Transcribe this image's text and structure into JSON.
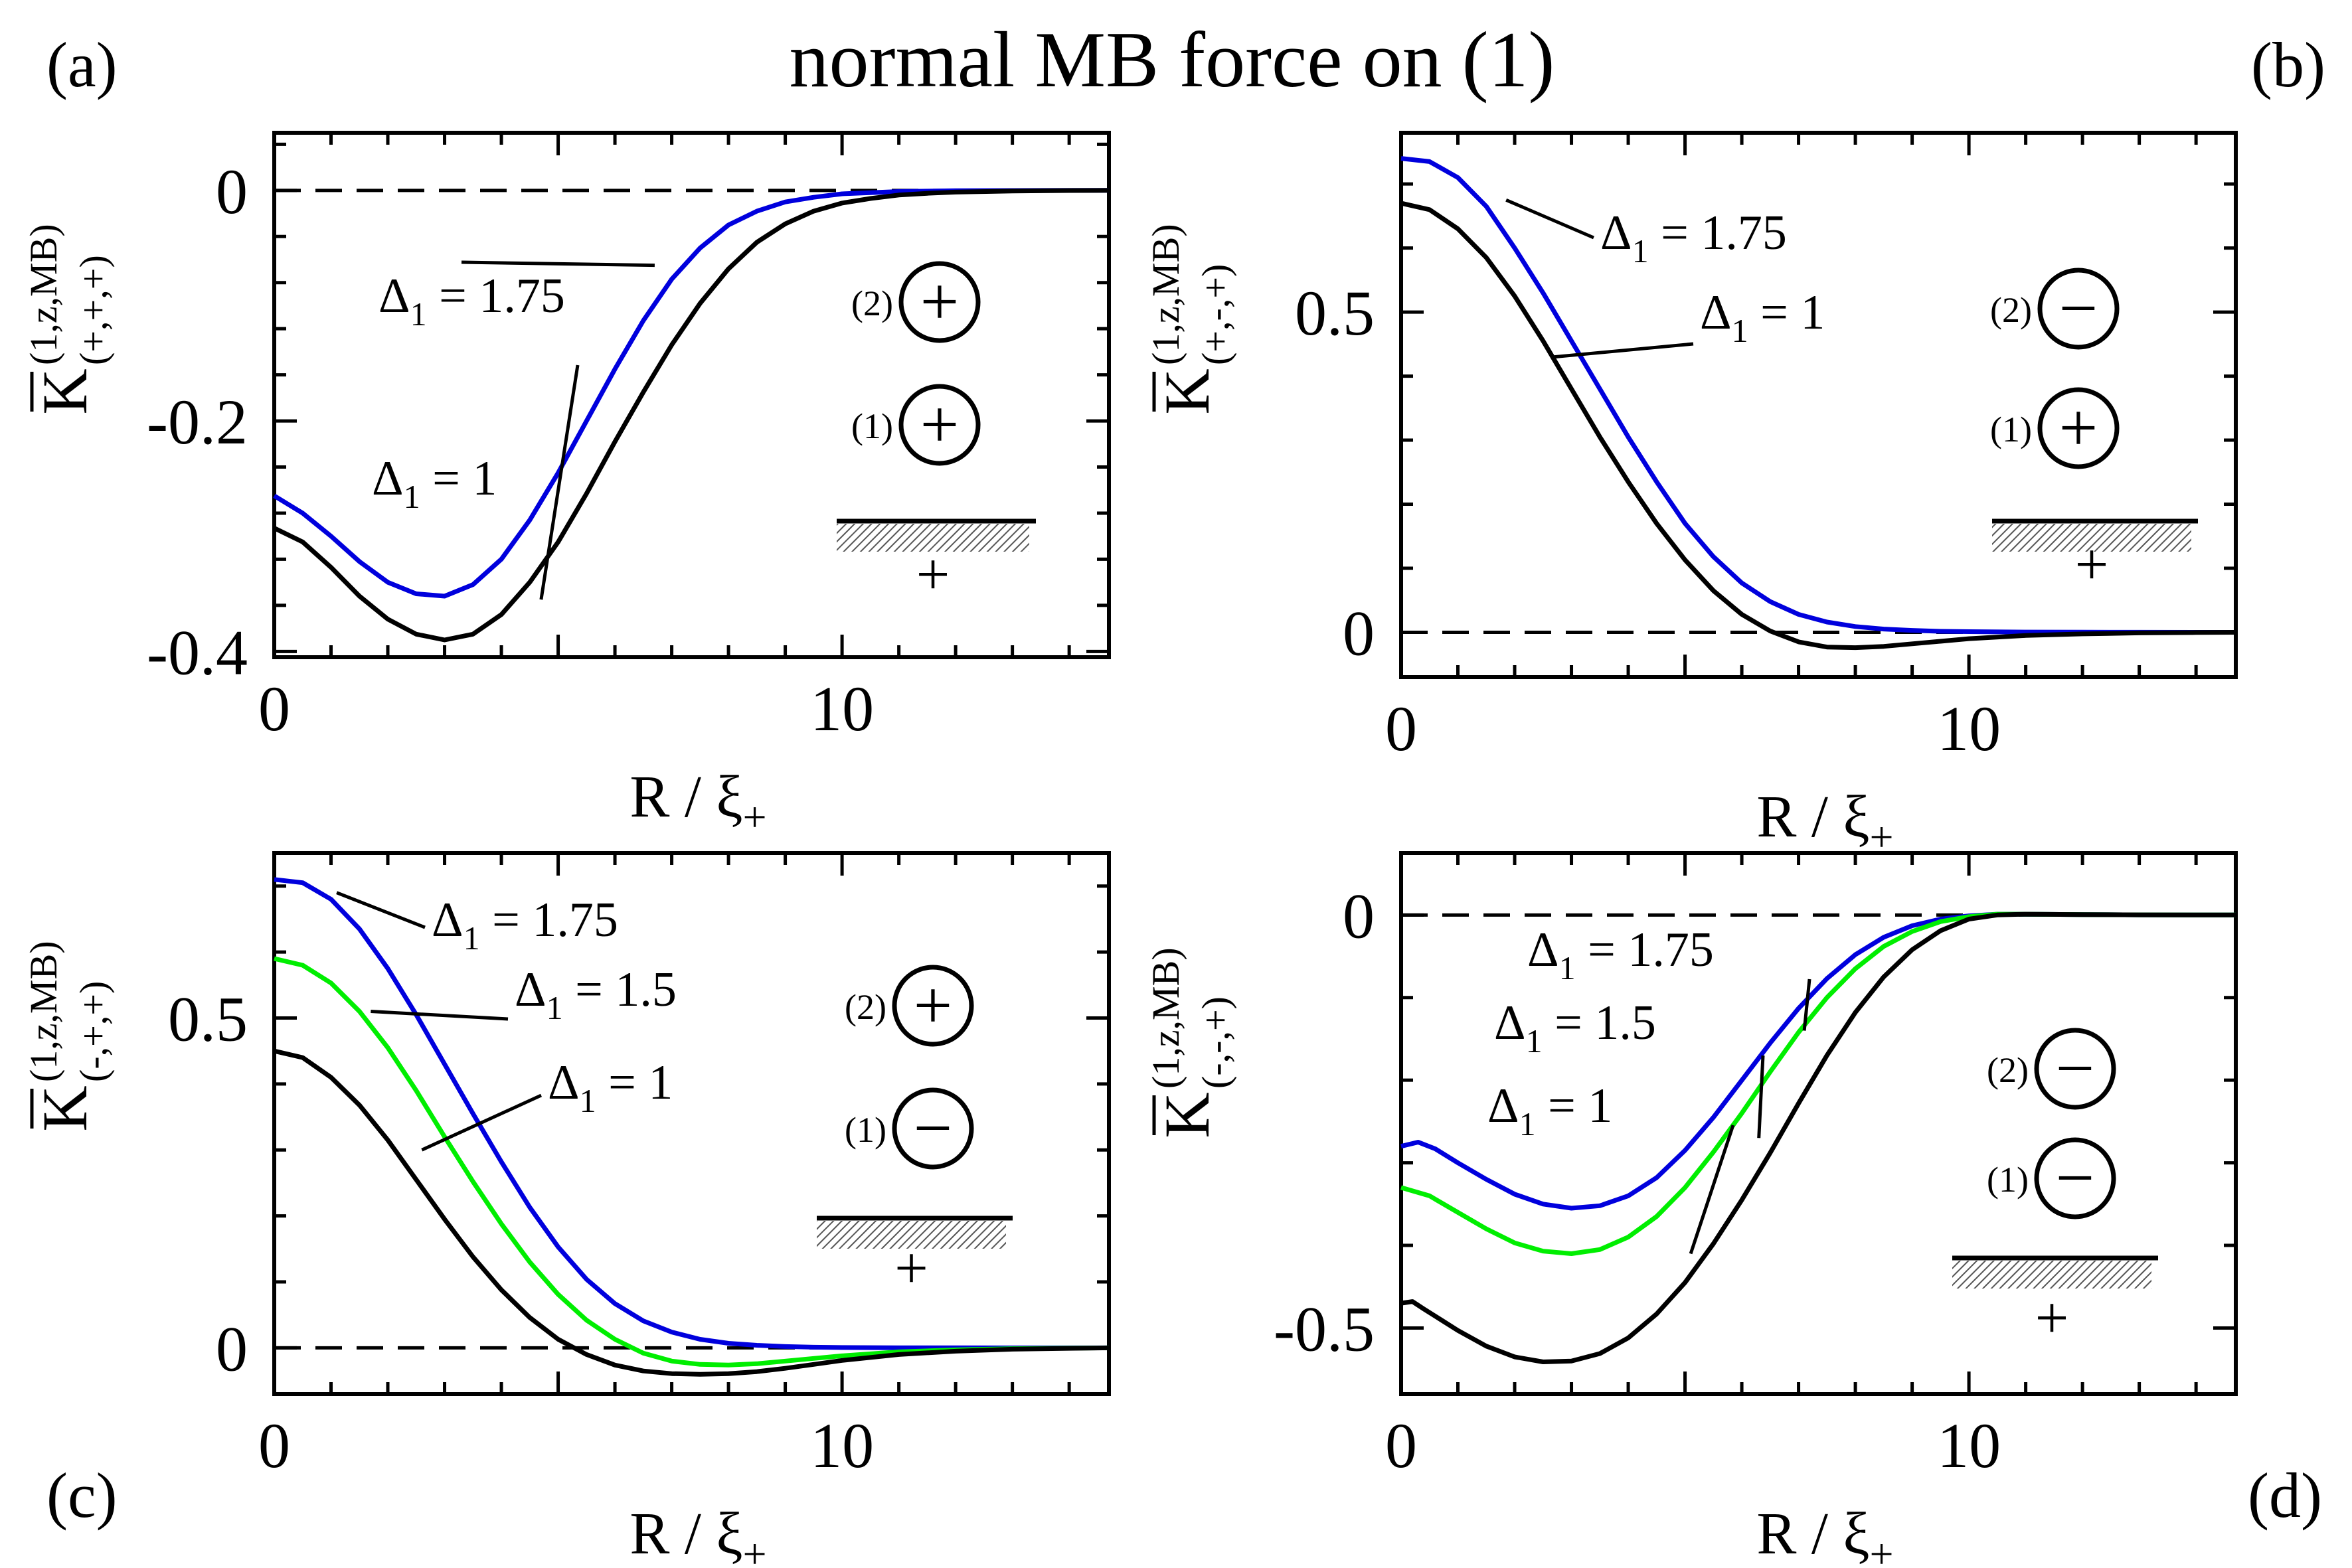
{
  "figure": {
    "title": "normal MB force on (1)"
  },
  "chart_data": [
    {
      "type": "line",
      "panel_label": "(a)",
      "xlabel": "R / ξ",
      "xlabel_sub": "+",
      "ylabel_main": "K",
      "ylabel_sup": "(1,z,MB)",
      "ylabel_sub": "(+,+,+)",
      "xlim": [
        0,
        14.7
      ],
      "ylim": [
        -0.405,
        0.05
      ],
      "xticks": [
        0,
        10
      ],
      "xtick_labels": [
        "0",
        "10"
      ],
      "yticks": [
        0,
        -0.2,
        -0.4
      ],
      "ytick_labels": [
        "0",
        "-0.2",
        "-0.4"
      ],
      "series": [
        {
          "name": "Δ1 = 1.75",
          "color": "#0000dd",
          "x": [
            0,
            0.5,
            1,
            1.5,
            2,
            2.5,
            3,
            3.5,
            4,
            4.5,
            5,
            5.5,
            6,
            6.5,
            7,
            7.5,
            8,
            8.5,
            9,
            9.5,
            10,
            10.5,
            11,
            11.5,
            12,
            13,
            14,
            14.7
          ],
          "y": [
            -0.265,
            -0.28,
            -0.3,
            -0.322,
            -0.34,
            -0.35,
            -0.352,
            -0.342,
            -0.32,
            -0.286,
            -0.245,
            -0.2,
            -0.155,
            -0.113,
            -0.077,
            -0.05,
            -0.03,
            -0.018,
            -0.01,
            -0.006,
            -0.003,
            -0.002,
            -0.001,
            -0.0006,
            -0.0003,
            -0.0001,
            0,
            0
          ]
        },
        {
          "name": "Δ1 = 1",
          "color": "#000000",
          "x": [
            0,
            0.5,
            1,
            1.5,
            2,
            2.5,
            3,
            3.5,
            4,
            4.5,
            5,
            5.5,
            6,
            6.5,
            7,
            7.5,
            8,
            8.5,
            9,
            9.5,
            10,
            10.5,
            11,
            11.5,
            12,
            13,
            14,
            14.7
          ],
          "y": [
            -0.293,
            -0.305,
            -0.327,
            -0.352,
            -0.372,
            -0.385,
            -0.39,
            -0.385,
            -0.368,
            -0.34,
            -0.305,
            -0.263,
            -0.218,
            -0.175,
            -0.134,
            -0.098,
            -0.068,
            -0.045,
            -0.029,
            -0.018,
            -0.011,
            -0.007,
            -0.004,
            -0.0025,
            -0.0015,
            -0.0005,
            -0.0001,
            0
          ]
        }
      ],
      "annotations": [
        {
          "text": "Δ",
          "sub": "1",
          "rest": " = 1.75"
        },
        {
          "text": "Δ",
          "sub": "1",
          "rest": " = 1"
        }
      ],
      "inset": {
        "top_label": "(2)",
        "top_sign": "+",
        "bottom_label": "(1)",
        "bottom_sign": "+",
        "wall_sign": "+"
      }
    },
    {
      "type": "line",
      "panel_label": "(b)",
      "xlabel": "R / ξ",
      "xlabel_sub": "+",
      "ylabel_main": "K",
      "ylabel_sup": "(1,z,MB)",
      "ylabel_sub": "(+,-,+)",
      "xlim": [
        0,
        14.7
      ],
      "ylim": [
        -0.07,
        0.78
      ],
      "xticks": [
        0,
        10
      ],
      "xtick_labels": [
        "0",
        "10"
      ],
      "yticks": [
        0.5,
        0
      ],
      "ytick_labels": [
        "0.5",
        "0"
      ],
      "series": [
        {
          "name": "Δ1 = 1.75",
          "color": "#0000dd",
          "x": [
            0,
            0.5,
            1,
            1.5,
            2,
            2.5,
            3,
            3.5,
            4,
            4.5,
            5,
            5.5,
            6,
            6.5,
            7,
            7.5,
            8,
            8.5,
            9,
            9.5,
            10,
            11,
            12,
            13,
            14,
            14.7
          ],
          "y": [
            0.74,
            0.735,
            0.71,
            0.665,
            0.6,
            0.53,
            0.455,
            0.38,
            0.305,
            0.235,
            0.17,
            0.118,
            0.077,
            0.048,
            0.028,
            0.016,
            0.009,
            0.005,
            0.003,
            0.0015,
            0.001,
            0.0004,
            0.0002,
            0.0001,
            0,
            0
          ]
        },
        {
          "name": "Δ1 = 1",
          "color": "#000000",
          "x": [
            0,
            0.5,
            1,
            1.5,
            2,
            2.5,
            3,
            3.5,
            4,
            4.5,
            5,
            5.5,
            6,
            6.5,
            7,
            7.5,
            8,
            8.5,
            9,
            9.5,
            10,
            11,
            12,
            13,
            14,
            14.7
          ],
          "y": [
            0.67,
            0.66,
            0.63,
            0.585,
            0.525,
            0.455,
            0.38,
            0.305,
            0.235,
            0.17,
            0.113,
            0.065,
            0.028,
            0.002,
            -0.015,
            -0.023,
            -0.024,
            -0.022,
            -0.018,
            -0.014,
            -0.01,
            -0.005,
            -0.0025,
            -0.001,
            -0.0003,
            0
          ]
        }
      ],
      "annotations": [
        {
          "text": "Δ",
          "sub": "1",
          "rest": " = 1.75"
        },
        {
          "text": "Δ",
          "sub": "1",
          "rest": " = 1"
        }
      ],
      "inset": {
        "top_label": "(2)",
        "top_sign": "−",
        "bottom_label": "(1)",
        "bottom_sign": "+",
        "wall_sign": "+"
      }
    },
    {
      "type": "line",
      "panel_label": "(c)",
      "xlabel": "R / ξ",
      "xlabel_sub": "+",
      "ylabel_main": "K",
      "ylabel_sup": "(1,z,MB)",
      "ylabel_sub": "(-,+,+)",
      "xlim": [
        0,
        14.7
      ],
      "ylim": [
        -0.07,
        0.75
      ],
      "xticks": [
        0,
        10
      ],
      "xtick_labels": [
        "0",
        "10"
      ],
      "yticks": [
        0.5,
        0
      ],
      "ytick_labels": [
        "0.5",
        "0"
      ],
      "series": [
        {
          "name": "Δ1 = 1.75",
          "color": "#0000dd",
          "x": [
            0,
            0.5,
            1,
            1.5,
            2,
            2.5,
            3,
            3.5,
            4,
            4.5,
            5,
            5.5,
            6,
            6.5,
            7,
            7.5,
            8,
            8.5,
            9,
            9.5,
            10,
            11,
            12,
            13,
            14,
            14.7
          ],
          "y": [
            0.71,
            0.705,
            0.68,
            0.635,
            0.575,
            0.505,
            0.43,
            0.355,
            0.282,
            0.213,
            0.153,
            0.104,
            0.067,
            0.041,
            0.024,
            0.013,
            0.007,
            0.004,
            0.002,
            0.001,
            0.0005,
            0.0002,
            0.0001,
            0,
            0,
            0
          ]
        },
        {
          "name": "Δ1 = 1.5",
          "color": "#00ee00",
          "x": [
            0,
            0.5,
            1,
            1.5,
            2,
            2.5,
            3,
            3.5,
            4,
            4.5,
            5,
            5.5,
            6,
            6.5,
            7,
            7.5,
            8,
            8.5,
            9,
            9.5,
            10,
            11,
            12,
            13,
            14,
            14.7
          ],
          "y": [
            0.59,
            0.58,
            0.553,
            0.51,
            0.455,
            0.39,
            0.32,
            0.252,
            0.188,
            0.13,
            0.081,
            0.042,
            0.013,
            -0.008,
            -0.02,
            -0.025,
            -0.026,
            -0.024,
            -0.02,
            -0.016,
            -0.012,
            -0.006,
            -0.003,
            -0.0012,
            -0.0004,
            0
          ]
        },
        {
          "name": "Δ1 = 1",
          "color": "#000000",
          "x": [
            0,
            0.5,
            1,
            1.5,
            2,
            2.5,
            3,
            3.5,
            4,
            4.5,
            5,
            5.5,
            6,
            6.5,
            7,
            7.5,
            8,
            8.5,
            9,
            9.5,
            10,
            11,
            12,
            13,
            14,
            14.7
          ],
          "y": [
            0.45,
            0.44,
            0.41,
            0.368,
            0.315,
            0.255,
            0.195,
            0.138,
            0.088,
            0.046,
            0.013,
            -0.01,
            -0.026,
            -0.035,
            -0.039,
            -0.04,
            -0.039,
            -0.036,
            -0.031,
            -0.025,
            -0.019,
            -0.01,
            -0.005,
            -0.002,
            -0.0007,
            0
          ]
        }
      ],
      "annotations": [
        {
          "text": "Δ",
          "sub": "1",
          "rest": " = 1.75"
        },
        {
          "text": "Δ",
          "sub": "1",
          "rest": " = 1.5"
        },
        {
          "text": "Δ",
          "sub": "1",
          "rest": " = 1"
        }
      ],
      "inset": {
        "top_label": "(2)",
        "top_sign": "+",
        "bottom_label": "(1)",
        "bottom_sign": "−",
        "wall_sign": "+"
      }
    },
    {
      "type": "line",
      "panel_label": "(d)",
      "xlabel": "R / ξ",
      "xlabel_sub": "+",
      "ylabel_main": "K",
      "ylabel_sup": "(1,z,MB)",
      "ylabel_sub": "(-,-,+)",
      "xlim": [
        0,
        14.7
      ],
      "ylim": [
        -0.58,
        0.075
      ],
      "xticks": [
        0,
        10
      ],
      "xtick_labels": [
        "0",
        "10"
      ],
      "yticks": [
        0,
        -0.5
      ],
      "ytick_labels": [
        "0",
        "-0.5"
      ],
      "series": [
        {
          "name": "Δ1 = 1.75",
          "color": "#0000dd",
          "x": [
            0,
            0.3,
            0.6,
            1,
            1.5,
            2,
            2.5,
            3,
            3.5,
            4,
            4.5,
            5,
            5.5,
            6,
            6.5,
            7,
            7.5,
            8,
            8.5,
            9,
            9.5,
            10,
            10.5,
            11,
            12,
            13,
            14,
            14.7
          ],
          "y": [
            -0.28,
            -0.275,
            -0.283,
            -0.3,
            -0.32,
            -0.338,
            -0.35,
            -0.355,
            -0.352,
            -0.34,
            -0.318,
            -0.285,
            -0.245,
            -0.2,
            -0.155,
            -0.113,
            -0.077,
            -0.048,
            -0.027,
            -0.013,
            -0.005,
            -0.001,
            0.001,
            0.001,
            0.0005,
            0.0002,
            0,
            0
          ]
        },
        {
          "name": "Δ1 = 1.5",
          "color": "#00ee00",
          "x": [
            0,
            0.5,
            1,
            1.5,
            2,
            2.5,
            3,
            3.5,
            4,
            4.5,
            5,
            5.5,
            6,
            6.5,
            7,
            7.5,
            8,
            8.5,
            9,
            9.5,
            10,
            10.5,
            11,
            12,
            13,
            14,
            14.7
          ],
          "y": [
            -0.33,
            -0.34,
            -0.36,
            -0.38,
            -0.397,
            -0.407,
            -0.41,
            -0.405,
            -0.39,
            -0.365,
            -0.33,
            -0.287,
            -0.24,
            -0.19,
            -0.142,
            -0.1,
            -0.065,
            -0.038,
            -0.02,
            -0.008,
            -0.002,
            0.001,
            0.001,
            0.0005,
            0.0002,
            0,
            0
          ]
        },
        {
          "name": "Δ1 = 1",
          "color": "#000000",
          "x": [
            0,
            0.2,
            0.4,
            0.7,
            1,
            1.5,
            2,
            2.5,
            3,
            3.5,
            4,
            4.5,
            5,
            5.5,
            6,
            6.5,
            7,
            7.5,
            8,
            8.5,
            9,
            9.5,
            10,
            10.5,
            11,
            12,
            13,
            14,
            14.7
          ],
          "y": [
            -0.47,
            -0.468,
            -0.477,
            -0.49,
            -0.503,
            -0.522,
            -0.535,
            -0.541,
            -0.54,
            -0.531,
            -0.512,
            -0.483,
            -0.445,
            -0.398,
            -0.345,
            -0.288,
            -0.228,
            -0.17,
            -0.118,
            -0.075,
            -0.042,
            -0.019,
            -0.005,
            0,
            0.001,
            0.0005,
            0.0002,
            0,
            0
          ]
        }
      ],
      "annotations": [
        {
          "text": "Δ",
          "sub": "1",
          "rest": " = 1.75"
        },
        {
          "text": "Δ",
          "sub": "1",
          "rest": " = 1.5"
        },
        {
          "text": "Δ",
          "sub": "1",
          "rest": " = 1"
        }
      ],
      "inset": {
        "top_label": "(2)",
        "top_sign": "−",
        "bottom_label": "(1)",
        "bottom_sign": "−",
        "wall_sign": "+"
      }
    }
  ]
}
